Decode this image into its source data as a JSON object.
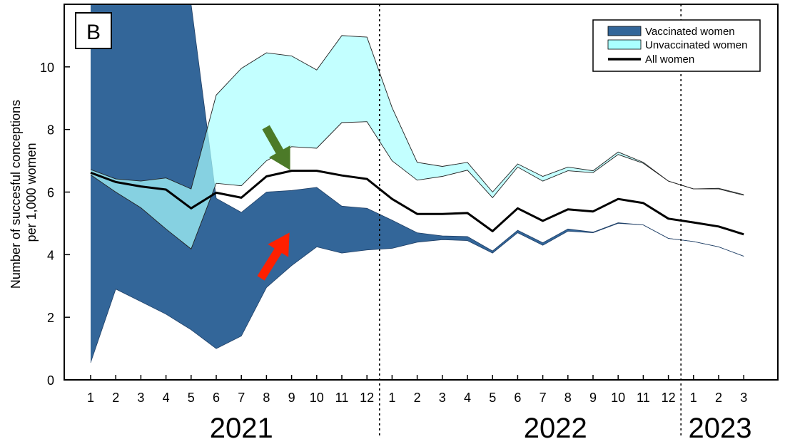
{
  "panel_label": "B",
  "chart_data": {
    "type": "area",
    "ylabel_lines": [
      "Number of succesful conceptions",
      "per 1,000 women"
    ],
    "ylim": [
      0,
      12
    ],
    "yticks": [
      0,
      2,
      4,
      6,
      8,
      10
    ],
    "ytick_labels": [
      "0",
      "2",
      "4",
      "6",
      "8",
      "10"
    ],
    "x_month_labels": [
      "1",
      "2",
      "3",
      "4",
      "5",
      "6",
      "7",
      "8",
      "9",
      "10",
      "11",
      "12",
      "1",
      "2",
      "3",
      "4",
      "5",
      "6",
      "7",
      "8",
      "9",
      "10",
      "11",
      "12",
      "1",
      "2",
      "3"
    ],
    "year_labels": [
      {
        "label": "2021",
        "center_index": 6
      },
      {
        "label": "2022",
        "center_index": 18.5
      },
      {
        "label": "2023",
        "center_index": 25
      }
    ],
    "year_dividers_after_index": [
      11.5,
      23.5
    ],
    "series": [
      {
        "name": "Vaccinated women",
        "kind": "band",
        "color": "#336699",
        "upper": [
          12,
          12,
          12,
          12,
          12,
          5.8,
          5.35,
          6.0,
          6.05,
          6.15,
          5.55,
          5.48,
          5.1,
          4.7,
          4.6,
          4.58,
          4.12,
          4.78,
          4.38,
          4.82,
          4.72,
          5.02,
          4.95,
          4.52,
          4.42,
          4.25,
          3.95
        ],
        "lower": [
          0.55,
          2.9,
          2.5,
          2.1,
          1.6,
          1.0,
          1.4,
          2.95,
          3.65,
          4.25,
          4.05,
          4.15,
          4.2,
          4.4,
          4.48,
          4.45,
          4.05,
          4.7,
          4.3,
          4.75,
          4.7,
          5.0,
          4.95,
          4.52,
          4.42,
          4.25,
          3.95
        ]
      },
      {
        "name": "Unvaccinated women",
        "kind": "band",
        "color": "#aaffff",
        "upper": [
          6.72,
          6.42,
          6.35,
          6.45,
          6.1,
          9.1,
          9.95,
          10.45,
          10.35,
          9.9,
          11.0,
          10.95,
          8.7,
          6.95,
          6.82,
          6.95,
          6.0,
          6.9,
          6.5,
          6.8,
          6.68,
          7.28,
          6.95,
          6.35,
          6.1,
          6.12,
          5.92
        ],
        "lower": [
          6.55,
          6.0,
          5.5,
          4.82,
          4.18,
          6.28,
          6.2,
          7.0,
          7.45,
          7.4,
          8.22,
          8.25,
          7.0,
          6.38,
          6.5,
          6.7,
          5.82,
          6.8,
          6.35,
          6.68,
          6.62,
          7.2,
          6.92,
          6.35,
          6.1,
          6.1,
          5.9
        ]
      },
      {
        "name": "All women",
        "kind": "line",
        "color": "#000000",
        "values": [
          6.62,
          6.32,
          6.18,
          6.08,
          5.48,
          5.98,
          5.82,
          6.5,
          6.68,
          6.68,
          6.53,
          6.42,
          5.78,
          5.3,
          5.3,
          5.33,
          4.75,
          5.48,
          5.08,
          5.45,
          5.38,
          5.78,
          5.65,
          5.15,
          5.03,
          4.9,
          4.65
        ]
      }
    ],
    "annotations": [
      {
        "name": "green-arrow",
        "color": "#4c7a28",
        "points_to_index": 8,
        "points_to_value": 6.75
      },
      {
        "name": "red-arrow",
        "color": "#ff2000",
        "points_to_index": 8,
        "points_to_value": 4.75
      }
    ],
    "legend_placement": "top-right",
    "grid": false
  }
}
